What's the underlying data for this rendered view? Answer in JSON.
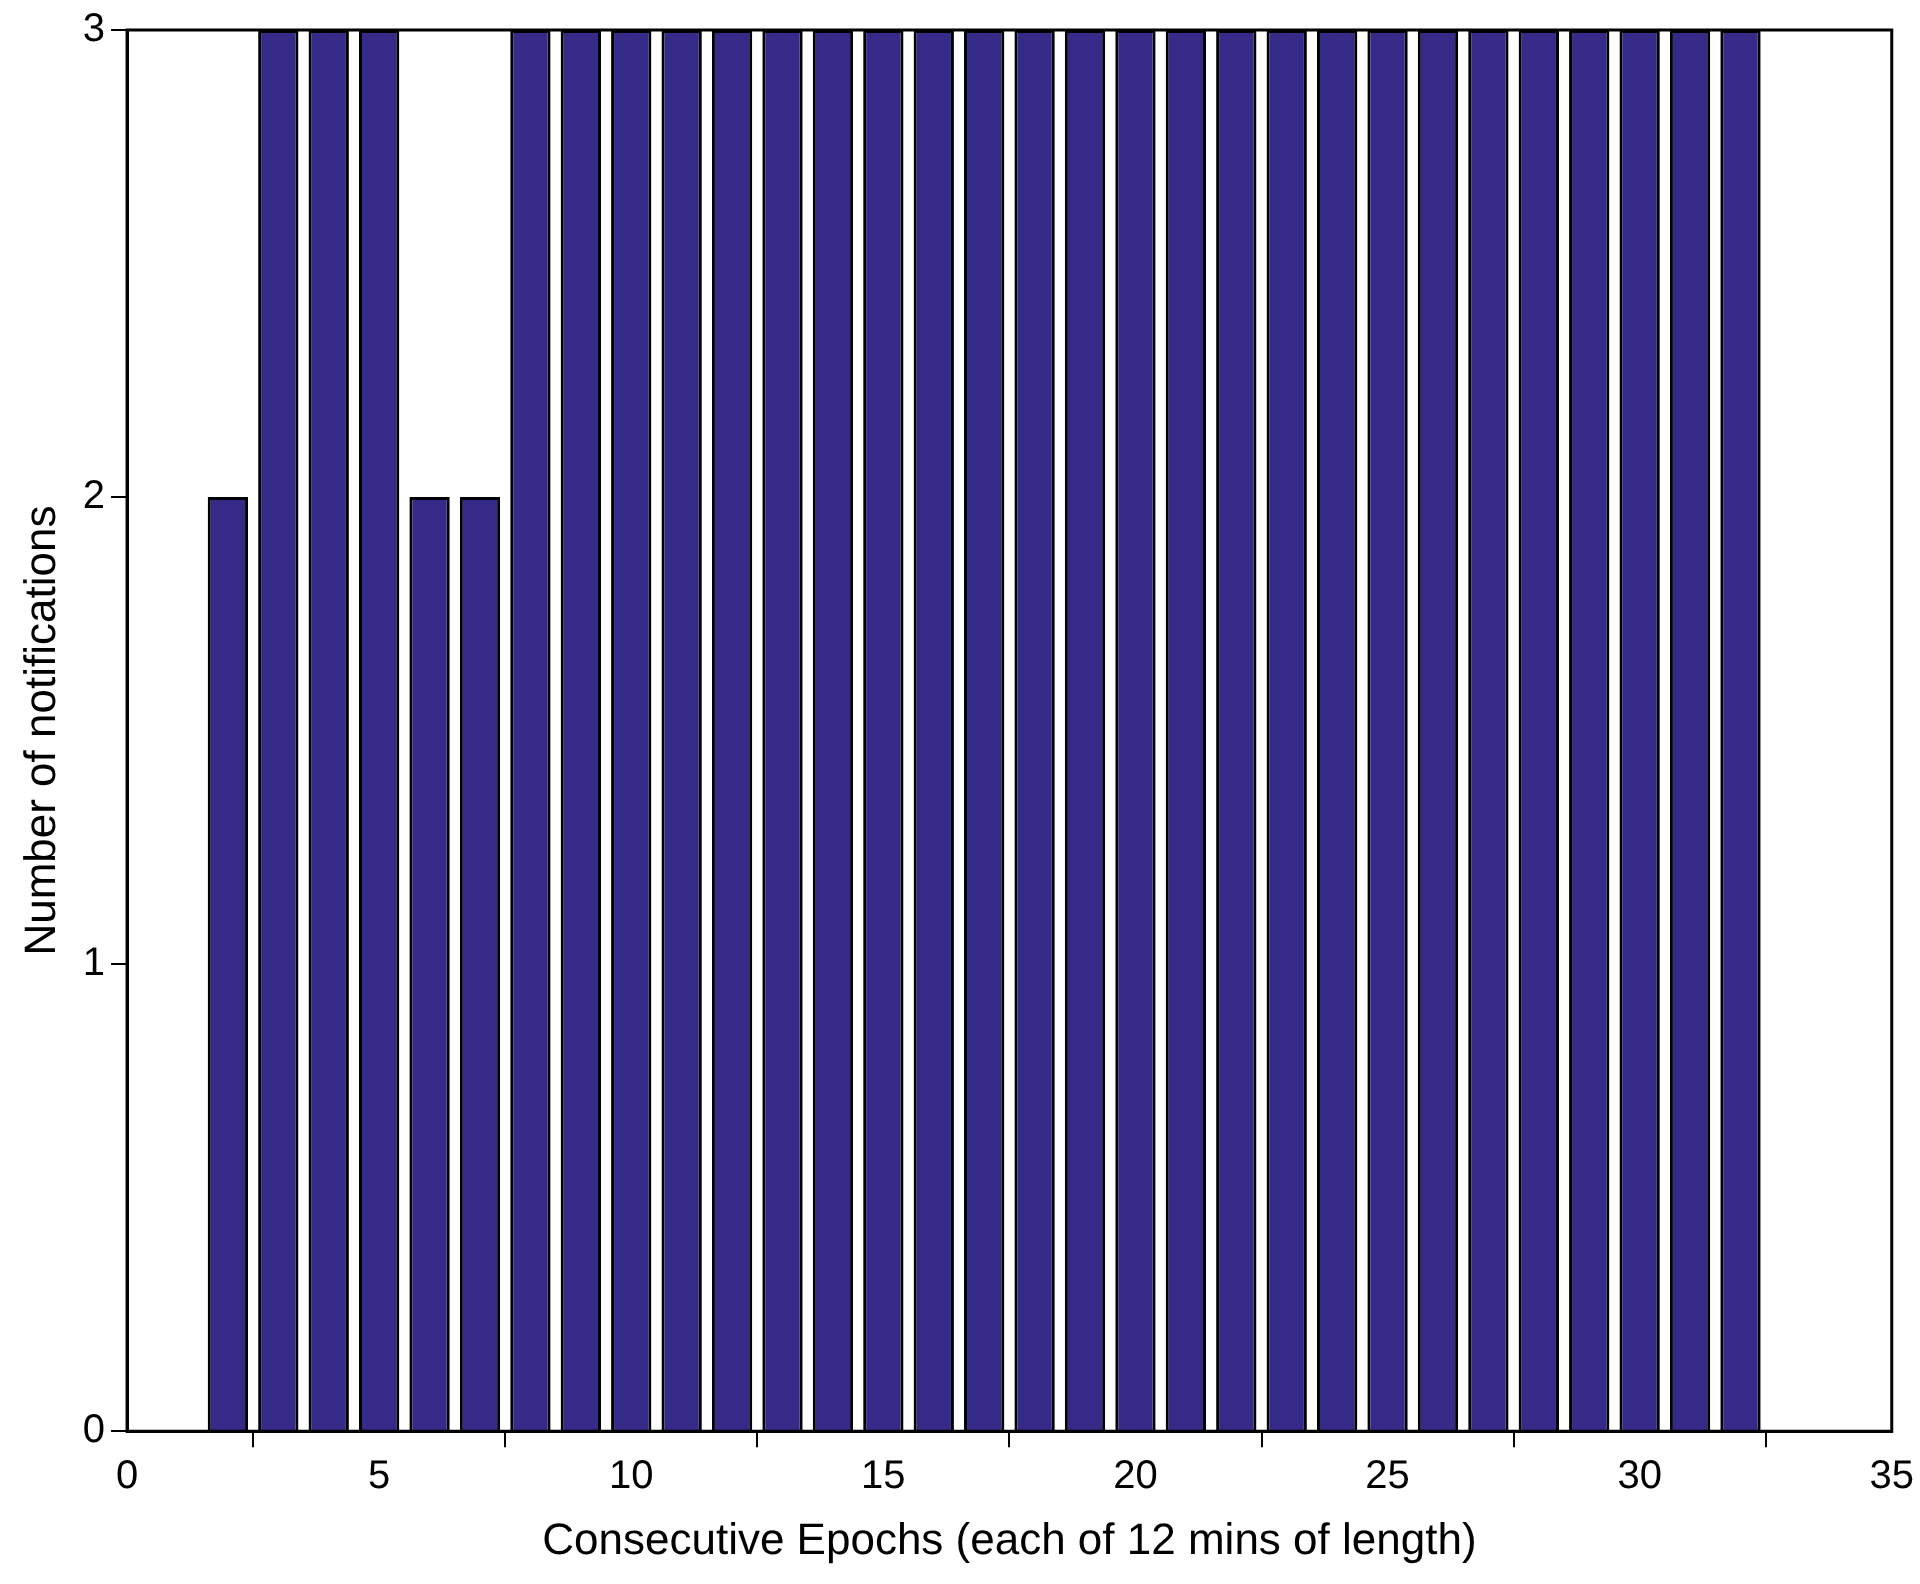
{
  "chart_data": {
    "type": "bar",
    "xlabel": "Consecutive Epochs (each of 12 mins of length)",
    "ylabel": "Number of notifications",
    "x": [
      2,
      3,
      4,
      5,
      6,
      7,
      8,
      9,
      10,
      11,
      12,
      13,
      14,
      15,
      16,
      17,
      18,
      19,
      20,
      21,
      22,
      23,
      24,
      25,
      26,
      27,
      28,
      29,
      30,
      31,
      32
    ],
    "values": [
      2,
      3,
      3,
      3,
      2,
      2,
      3,
      3,
      3,
      3,
      3,
      3,
      3,
      3,
      3,
      3,
      3,
      3,
      3,
      3,
      3,
      3,
      3,
      3,
      3,
      3,
      3,
      3,
      3,
      3,
      3
    ],
    "color": "#352a87",
    "xlim": [
      0,
      35
    ],
    "xticks": [
      0,
      5,
      10,
      15,
      20,
      25,
      30,
      35
    ],
    "ylim": [
      0,
      3
    ],
    "yticks": [
      0,
      1,
      2,
      3
    ],
    "grid": false,
    "legend": false
  }
}
